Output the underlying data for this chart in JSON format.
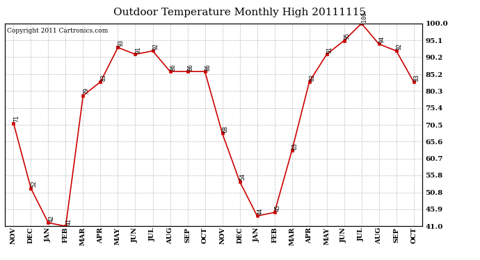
{
  "title": "Outdoor Temperature Monthly High 20111115",
  "copyright": "Copyright 2011 Cartronics.com",
  "months": [
    "NOV",
    "DEC",
    "JAN",
    "FEB",
    "MAR",
    "APR",
    "MAY",
    "JUN",
    "JUL",
    "AUG",
    "SEP",
    "OCT",
    "NOV",
    "DEC",
    "JAN",
    "FEB",
    "MAR",
    "APR",
    "MAY",
    "JUN",
    "JUL",
    "AUG",
    "SEP",
    "OCT"
  ],
  "values": [
    71,
    52,
    42,
    41,
    79,
    83,
    93,
    91,
    92,
    86,
    86,
    86,
    68,
    54,
    44,
    45,
    63,
    83,
    91,
    95,
    100,
    94,
    92,
    83
  ],
  "ylim": [
    41.0,
    100.0
  ],
  "yticks": [
    41.0,
    45.9,
    50.8,
    55.8,
    60.7,
    65.6,
    70.5,
    75.4,
    80.3,
    85.2,
    90.2,
    95.1,
    100.0
  ],
  "line_color": "#cc0000",
  "marker_color": "#cc0000",
  "bg_color": "#ffffff",
  "grid_color": "#bbbbbb",
  "title_fontsize": 11,
  "copyright_fontsize": 6.5,
  "label_fontsize": 6,
  "tick_fontsize": 7,
  "ytick_fontsize": 7.5
}
